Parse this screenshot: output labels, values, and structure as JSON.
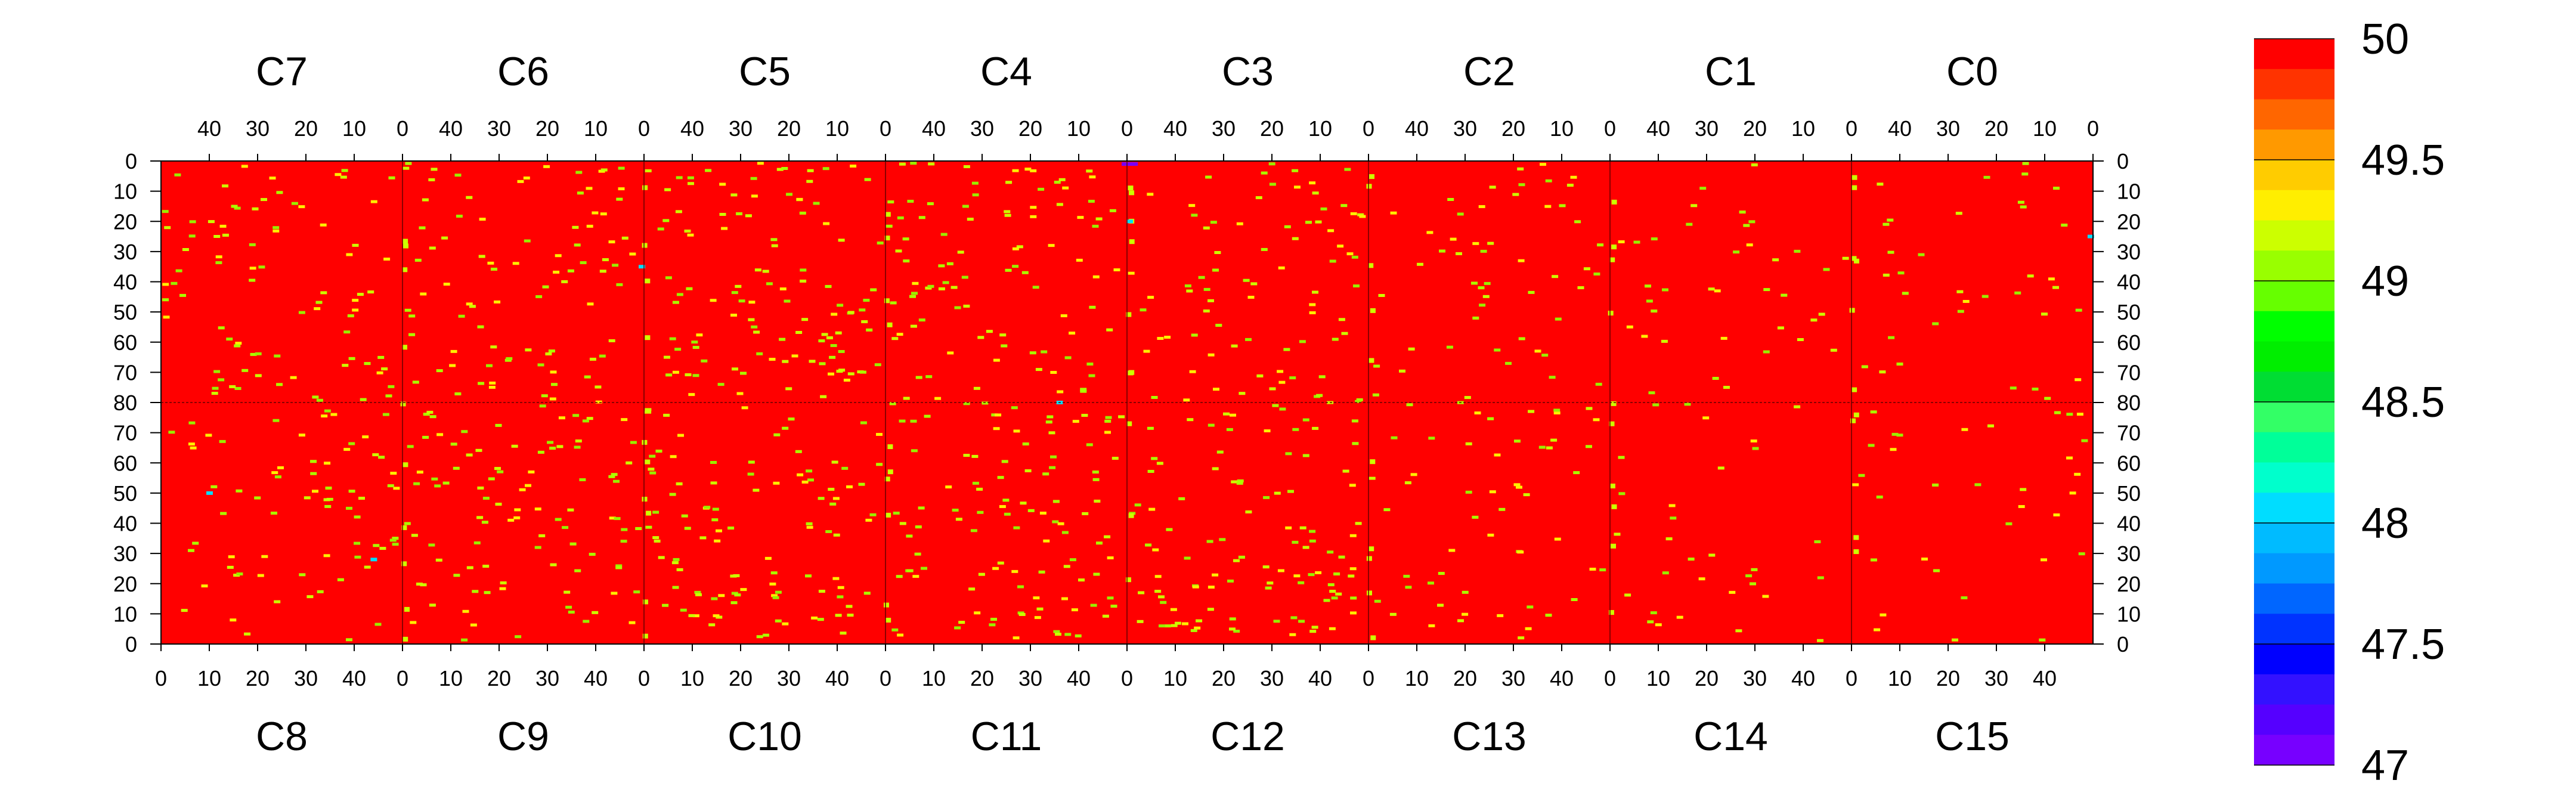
{
  "chart_data": {
    "type": "heatmap",
    "title": "",
    "xlabel": "",
    "ylabel": "",
    "top_panels": [
      "C7",
      "C6",
      "C5",
      "C4",
      "C3",
      "C2",
      "C1",
      "C0"
    ],
    "bottom_panels": [
      "C8",
      "C9",
      "C10",
      "C11",
      "C12",
      "C13",
      "C14",
      "C15"
    ],
    "top_x_tick_labels": [
      "40",
      "30",
      "20",
      "10",
      "0"
    ],
    "bottom_x_tick_labels": [
      "0",
      "10",
      "20",
      "30",
      "40"
    ],
    "x_range": [
      0,
      50
    ],
    "y_tick_labels_top_half": [
      "0",
      "10",
      "20",
      "30",
      "40",
      "50",
      "60",
      "70",
      "80"
    ],
    "y_tick_labels_bottom_half": [
      "70",
      "60",
      "50",
      "40",
      "30",
      "20",
      "10",
      "0"
    ],
    "y_range_per_half": [
      0,
      80
    ],
    "background_value": 50,
    "color_scale": {
      "min": 47,
      "max": 50,
      "tick_labels": [
        "50",
        "49.5",
        "49",
        "48.5",
        "48",
        "47.5",
        "47"
      ],
      "tick_values": [
        50,
        49.5,
        49,
        48.5,
        48,
        47.5,
        47
      ],
      "bands": [
        "#ff0000",
        "#ff3300",
        "#ff6600",
        "#ff9900",
        "#ffcc00",
        "#ffee00",
        "#ccff00",
        "#99ff00",
        "#66ff00",
        "#00ff00",
        "#00ee00",
        "#00dd33",
        "#33ff66",
        "#00ff99",
        "#00ffcc",
        "#00ddff",
        "#00bbff",
        "#0099ff",
        "#0066ff",
        "#0033ff",
        "#0000ff",
        "#3311ff",
        "#5500ff",
        "#7700ff"
      ]
    },
    "highlighted_cells": [
      {
        "panel": "C4",
        "x": 0.5,
        "y": 1,
        "value": 47.0
      },
      {
        "panel": "C3",
        "x": 48.5,
        "y": 1,
        "value": 47.0
      },
      {
        "panel": "C3",
        "x": 49.5,
        "y": 1,
        "value": 47.0
      },
      {
        "panel": "C6",
        "x": 0.5,
        "y": 35,
        "value": 48.0
      },
      {
        "panel": "C3",
        "x": 49.5,
        "y": 20,
        "value": 48.0
      },
      {
        "panel": "C0",
        "x": 0.5,
        "y": 25,
        "value": 48.0
      },
      {
        "panel": "C11",
        "x": 36,
        "y": 80,
        "value": 48.0
      },
      {
        "panel": "C8",
        "x": 10,
        "y": 50,
        "value": 48.0
      },
      {
        "panel": "C8",
        "x": 44,
        "y": 28,
        "value": 48.0
      }
    ]
  }
}
